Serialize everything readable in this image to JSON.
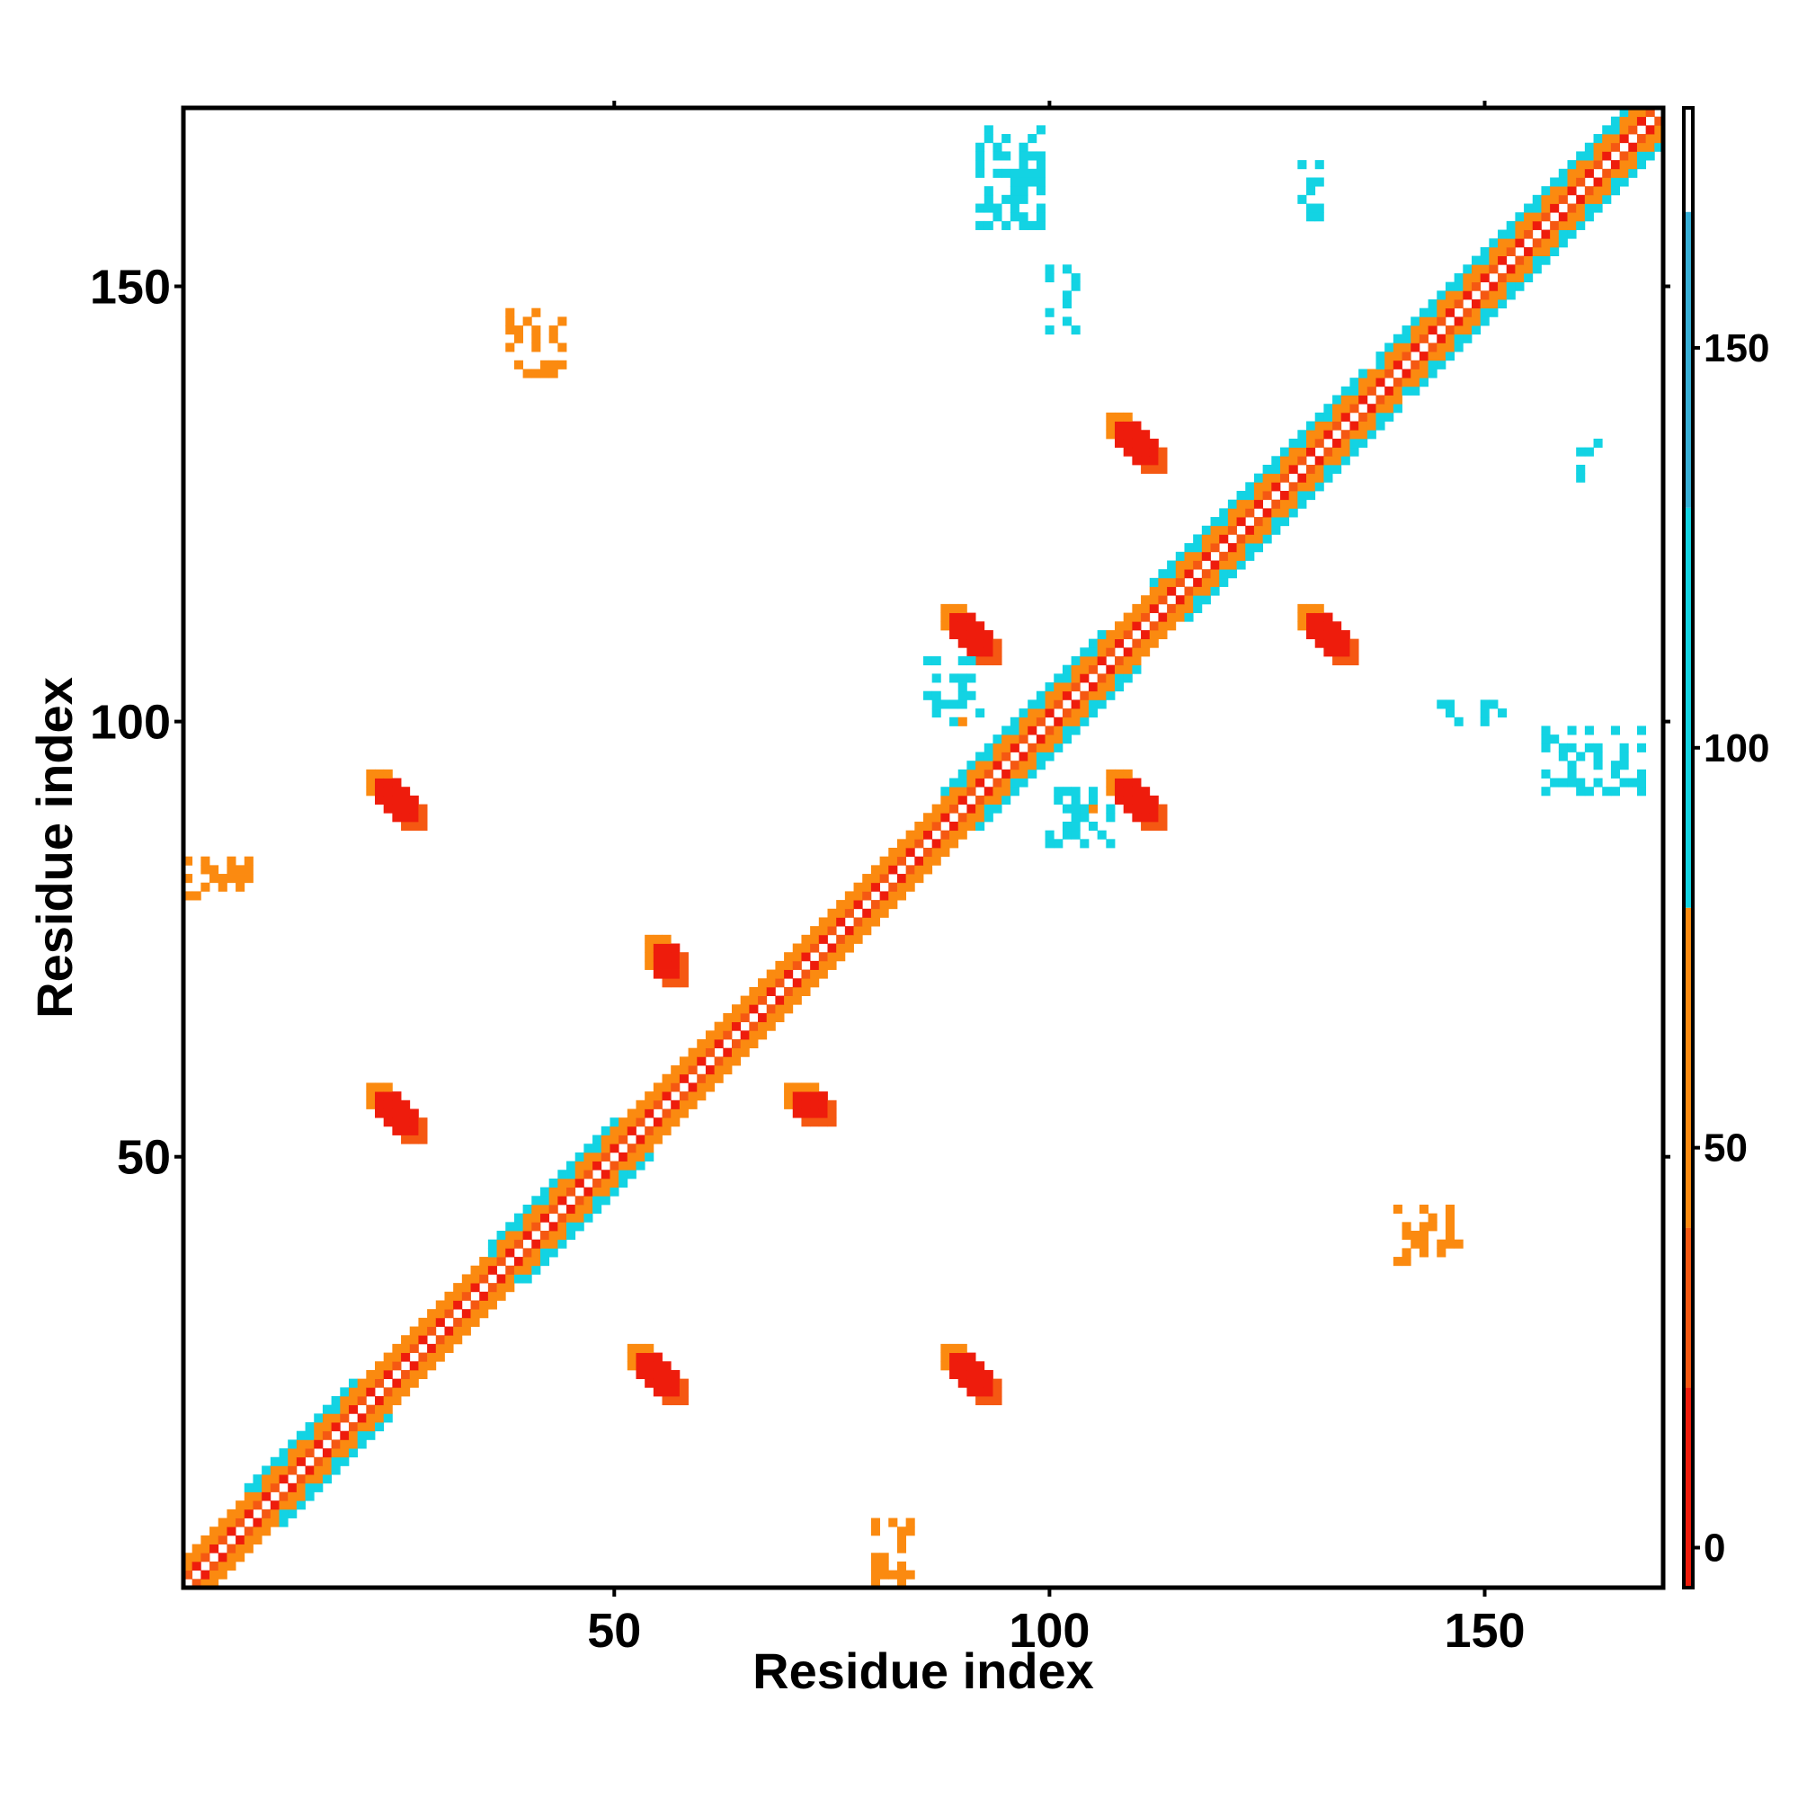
{
  "chart_data": {
    "type": "heatmap",
    "title": "",
    "xlabel": "Residue index",
    "ylabel": "Residue index",
    "xlim": [
      0.5,
      170.5
    ],
    "ylim": [
      0.5,
      170.5
    ],
    "x_ticks": [
      50,
      100,
      150
    ],
    "y_ticks": [
      50,
      100,
      150
    ],
    "colorbar": {
      "range": [
        -5,
        180
      ],
      "ticks": [
        0,
        50,
        100,
        150
      ],
      "bands": [
        {
          "from": -5,
          "to": 20,
          "color": "#ee1c0c"
        },
        {
          "from": 20,
          "to": 40,
          "color": "#f55812"
        },
        {
          "from": 40,
          "to": 80,
          "color": "#fb8a10"
        },
        {
          "from": 80,
          "to": 130,
          "color": "#13d3e3"
        },
        {
          "from": 130,
          "to": 167,
          "color": "#37aed6"
        },
        {
          "from": 167,
          "to": 180,
          "color": "#ffffff"
        }
      ]
    },
    "colors": {
      "red": "#ee1c0c",
      "red_orange": "#f55812",
      "orange": "#fb8a10",
      "cyan": "#13d3e3",
      "blue": "#3fa8d4",
      "steel": "#4a7fbf"
    },
    "diagonal_band": {
      "description_values": "contacts along |i-j| <= 4 with helical periodicity",
      "helix_segments": [
        [
          8,
          20
        ],
        [
          36,
          50
        ],
        [
          88,
          106
        ],
        [
          112,
          136
        ],
        [
          138,
          170
        ]
      ],
      "strand_segments": [
        [
          1,
          8
        ],
        [
          20,
          36
        ],
        [
          50,
          88
        ],
        [
          106,
          112
        ],
        [
          136,
          138
        ]
      ]
    },
    "clusters": [
      {
        "i": [
          22,
          28
        ],
        "j": [
          52,
          58
        ],
        "value": 10,
        "kind": "antiparallel"
      },
      {
        "i": [
          52,
          58
        ],
        "j": [
          22,
          28
        ],
        "value": 10,
        "kind": "antiparallel"
      },
      {
        "i": [
          22,
          28
        ],
        "j": [
          88,
          94
        ],
        "value": 12,
        "kind": "antiparallel"
      },
      {
        "i": [
          88,
          94
        ],
        "j": [
          22,
          28
        ],
        "value": 12,
        "kind": "antiparallel"
      },
      {
        "i": [
          54,
          58
        ],
        "j": [
          70,
          75
        ],
        "value": 14,
        "kind": "antiparallel"
      },
      {
        "i": [
          70,
          75
        ],
        "j": [
          54,
          58
        ],
        "value": 14,
        "kind": "antiparallel"
      },
      {
        "i": [
          88,
          94
        ],
        "j": [
          107,
          113
        ],
        "value": 11,
        "kind": "antiparallel"
      },
      {
        "i": [
          107,
          113
        ],
        "j": [
          88,
          94
        ],
        "value": 11,
        "kind": "antiparallel"
      },
      {
        "i": [
          107,
          113
        ],
        "j": [
          129,
          135
        ],
        "value": 11,
        "kind": "antiparallel"
      },
      {
        "i": [
          129,
          135
        ],
        "j": [
          107,
          113
        ],
        "value": 11,
        "kind": "antiparallel"
      },
      {
        "i": [
          38,
          44
        ],
        "j": [
          140,
          147
        ],
        "value": 55,
        "kind": "sparse"
      },
      {
        "i": [
          140,
          147
        ],
        "j": [
          38,
          44
        ],
        "value": 55,
        "kind": "sparse"
      },
      {
        "i": [
          1,
          8
        ],
        "j": [
          80,
          84
        ],
        "value": 60,
        "kind": "sparse"
      },
      {
        "i": [
          80,
          84
        ],
        "j": [
          1,
          8
        ],
        "value": 60,
        "kind": "sparse"
      },
      {
        "i": [
          92,
          99
        ],
        "j": [
          157,
          168
        ],
        "value": 105,
        "kind": "sparse"
      },
      {
        "i": [
          157,
          168
        ],
        "j": [
          92,
          99
        ],
        "value": 105,
        "kind": "sparse"
      },
      {
        "i": [
          128,
          132
        ],
        "j": [
          158,
          164
        ],
        "value": 100,
        "kind": "sparse"
      },
      {
        "i": [
          158,
          164
        ],
        "j": [
          128,
          132
        ],
        "value": 100,
        "kind": "sparse"
      },
      {
        "i": [
          100,
          103
        ],
        "j": [
          145,
          152
        ],
        "value": 110,
        "kind": "sparse"
      },
      {
        "i": [
          145,
          152
        ],
        "j": [
          100,
          103
        ],
        "value": 110,
        "kind": "sparse"
      },
      {
        "i": [
          86,
          92
        ],
        "j": [
          100,
          107
        ],
        "value": 90,
        "kind": "sparse"
      },
      {
        "i": [
          100,
          107
        ],
        "j": [
          86,
          92
        ],
        "value": 90,
        "kind": "sparse"
      }
    ]
  }
}
